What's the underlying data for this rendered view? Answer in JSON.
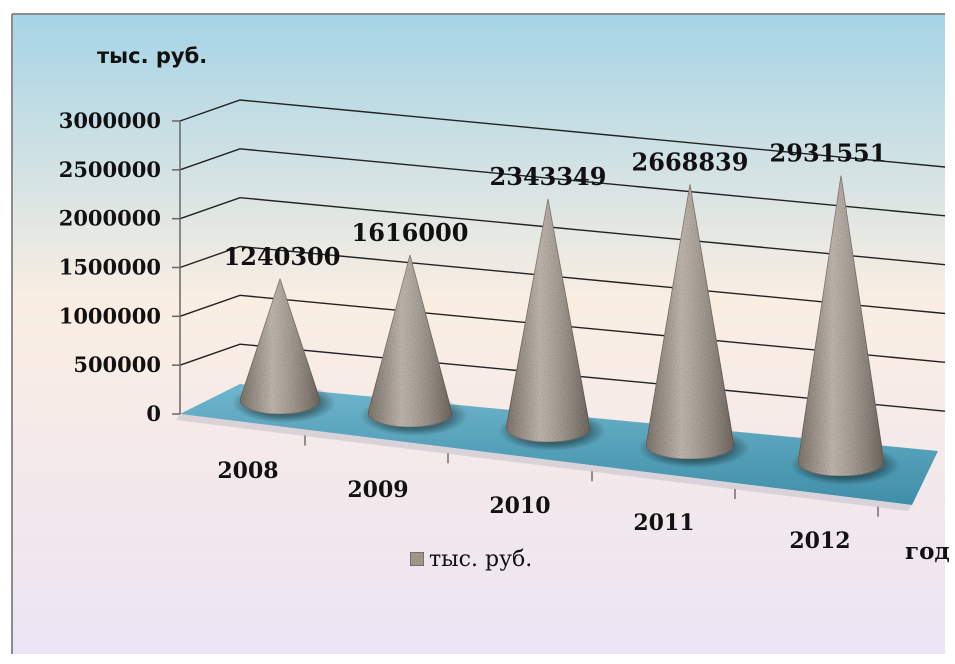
{
  "chart_data": {
    "type": "bar",
    "bar_shape": "cone",
    "three_d": true,
    "categories": [
      "2008",
      "2009",
      "2010",
      "2011",
      "2012"
    ],
    "series": [
      {
        "name": "тыс. руб.",
        "values": [
          1240300,
          1616000,
          2343349,
          2668839,
          2931551
        ]
      }
    ],
    "data_labels": [
      "1240300",
      "1616000",
      "2343349",
      "2668839",
      "2931551"
    ],
    "ylabel": "тыс. руб.",
    "xlabel": "год",
    "ylim": [
      0,
      3000000
    ],
    "yticks": [
      0,
      500000,
      1000000,
      1500000,
      2000000,
      2500000,
      3000000
    ],
    "ytick_labels": [
      "0",
      "500000",
      "1000000",
      "1500000",
      "2000000",
      "2500000",
      "3000000"
    ],
    "grid": true,
    "legend_position": "bottom",
    "colors": {
      "background_top": "#a5d4e6",
      "background_mid": "#faeee2",
      "background_bottom": "#ece4f4",
      "floor": "#3f8ea8",
      "cone": "#b6aa9c",
      "frame": "#8c8c8c"
    }
  }
}
